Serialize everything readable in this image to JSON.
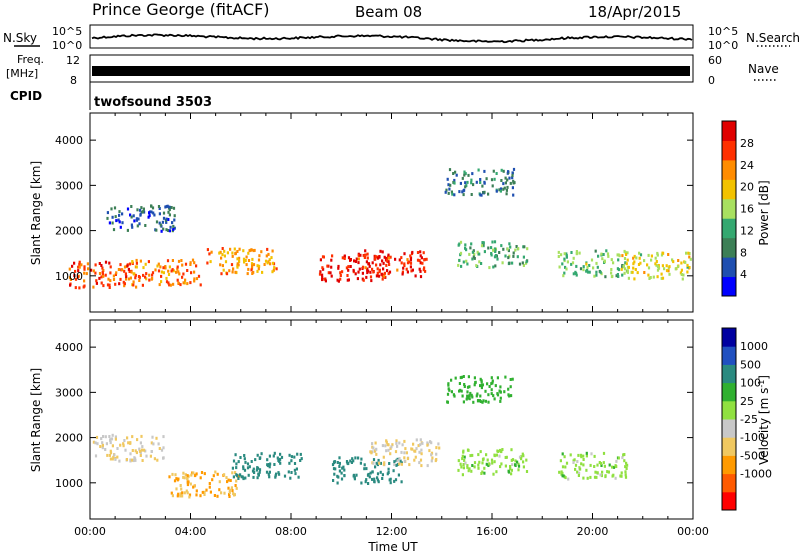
{
  "header": {
    "station": "Prince George (fitACF)",
    "beam": "Beam 08",
    "date": "18/Apr/2015"
  },
  "strips": {
    "nsky_label": "N.Sky",
    "nsearch_label": "N.Search",
    "noise_ticks": [
      "10^5",
      "10^0"
    ],
    "freq_label_1": "Freq.",
    "freq_label_2": "[MHz]",
    "freq_ticks": [
      "12",
      "8"
    ],
    "nave_label": "Nave",
    "nave_ticks": [
      "60",
      "0"
    ],
    "cpid_label": "CPID",
    "cpid_value": "twofsound 3503"
  },
  "colors": {
    "power": [
      "#0000ff",
      "#1f4fb0",
      "#3c7f56",
      "#34a870",
      "#a8e060",
      "#f2c200",
      "#ff8c00",
      "#ff3000",
      "#e00000"
    ],
    "velocity": [
      "#ff0000",
      "#ff5a00",
      "#ff9a00",
      "#f0c860",
      "#c8c8c8",
      "#90e040",
      "#30b030",
      "#2a8a80",
      "#2050c0",
      "#0000a0"
    ]
  },
  "chart_data": [
    {
      "type": "heatmap",
      "panel": "power",
      "xlabel": "",
      "ylabel": "Slant Range [km]",
      "xlim": [
        0,
        24
      ],
      "ylim": [
        200,
        4600
      ],
      "yticks": [
        "4000",
        "3000",
        "2000",
        "1000"
      ],
      "colorbar": {
        "label": "Power [dB]",
        "range": [
          0,
          32
        ],
        "ticks": [
          "28",
          "24",
          "20",
          "16",
          "12",
          "8",
          "4"
        ]
      },
      "description_points": [
        {
          "x": 0.5,
          "y": 1050,
          "value": 26
        },
        {
          "x": 3.0,
          "y": 1100,
          "value": 24
        },
        {
          "x": 6.0,
          "y": 1350,
          "value": 22
        },
        {
          "x": 10.5,
          "y": 1200,
          "value": 30
        },
        {
          "x": 12.0,
          "y": 1300,
          "value": 28
        },
        {
          "x": 16.0,
          "y": 1500,
          "value": 12
        },
        {
          "x": 20.0,
          "y": 1300,
          "value": 14
        },
        {
          "x": 15.5,
          "y": 3100,
          "value": 8
        },
        {
          "x": 2.0,
          "y": 2300,
          "value": 6
        },
        {
          "x": 22.5,
          "y": 1250,
          "value": 18
        }
      ]
    },
    {
      "type": "heatmap",
      "panel": "velocity",
      "xlabel": "Time UT",
      "ylabel": "Slant Range [km]",
      "xlim": [
        0,
        24
      ],
      "ylim": [
        200,
        4600
      ],
      "xticks": [
        "00:00",
        "04:00",
        "08:00",
        "12:00",
        "16:00",
        "20:00",
        "00:00"
      ],
      "yticks": [
        "4000",
        "3000",
        "2000",
        "1000"
      ],
      "colorbar": {
        "label": "Velocity [m s^-1]",
        "ticks": [
          "1000",
          "500",
          "100",
          "25",
          "-25",
          "-100",
          "-500",
          "-1000"
        ]
      },
      "description_points": [
        {
          "x": 4.5,
          "y": 1000,
          "value": -500
        },
        {
          "x": 1.5,
          "y": 1800,
          "value": -100
        },
        {
          "x": 7.0,
          "y": 1400,
          "value": 200
        },
        {
          "x": 11.0,
          "y": 1300,
          "value": 150
        },
        {
          "x": 12.5,
          "y": 1700,
          "value": -100
        },
        {
          "x": 16.0,
          "y": 1500,
          "value": 0
        },
        {
          "x": 20.0,
          "y": 1400,
          "value": 0
        },
        {
          "x": 15.5,
          "y": 3100,
          "value": 60
        }
      ]
    }
  ]
}
